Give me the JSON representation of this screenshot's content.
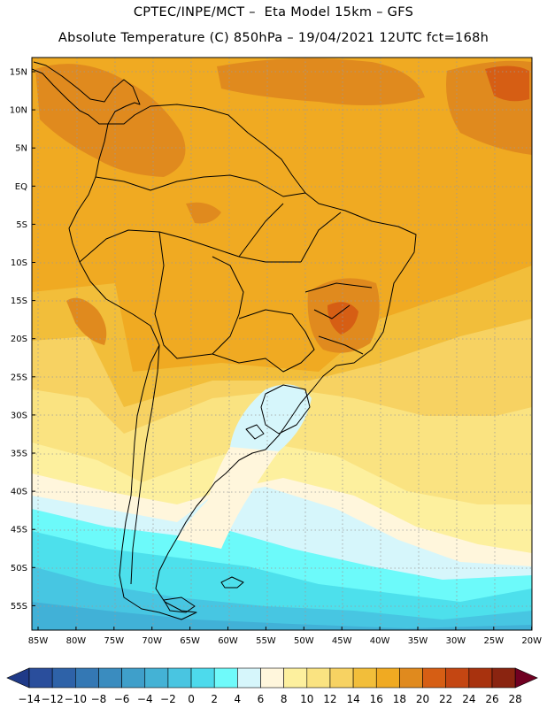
{
  "header": {
    "line1": "CPTEC/INPE/MCT –  Eta Model 15km – GFS",
    "line2": "Absolute Temperature (C) 850hPa – 19/04/2021 12UTC fct=168h"
  },
  "map": {
    "lat_labels": [
      "15N",
      "10N",
      "5N",
      "EQ",
      "5S",
      "10S",
      "15S",
      "20S",
      "25S",
      "30S",
      "35S",
      "40S",
      "45S",
      "50S",
      "55S"
    ],
    "lon_labels": [
      "85W",
      "80W",
      "75W",
      "70W",
      "65W",
      "60W",
      "55W",
      "50W",
      "45W",
      "40W",
      "35W",
      "30W",
      "25W",
      "20W"
    ],
    "colors": {
      "c20": "#e08a1e",
      "c18": "#f0aa22",
      "c16": "#f2be3a",
      "c14": "#f7d262",
      "c12": "#fae381",
      "c10": "#fdf09e",
      "c8": "#fff6dc",
      "c6": "#d6f6fb",
      "c4": "#6cfafa",
      "c2": "#4de0ec",
      "c0": "#47c6e2",
      "cn2": "#41b1d7"
    }
  },
  "colorbar": {
    "labels": [
      "-14",
      "-12",
      "-10",
      "-8",
      "-6",
      "-4",
      "-2",
      "0",
      "2",
      "4",
      "6",
      "8",
      "10",
      "12",
      "14",
      "16",
      "18",
      "20",
      "22",
      "24",
      "26",
      "28"
    ],
    "colors": [
      "#2a4e9c",
      "#2e62a8",
      "#3478b4",
      "#3a8cbf",
      "#3f9fca",
      "#44b2d5",
      "#49c5e1",
      "#4ddaec",
      "#6ffafa",
      "#d6f6fb",
      "#fff6dc",
      "#fdf09e",
      "#fae381",
      "#f7d262",
      "#f2be3a",
      "#f0aa22",
      "#e08a1e",
      "#d65e14",
      "#c44612",
      "#a8320e",
      "#8a2410"
    ],
    "low_color": "#1f3a88",
    "high_color": "#700022"
  }
}
